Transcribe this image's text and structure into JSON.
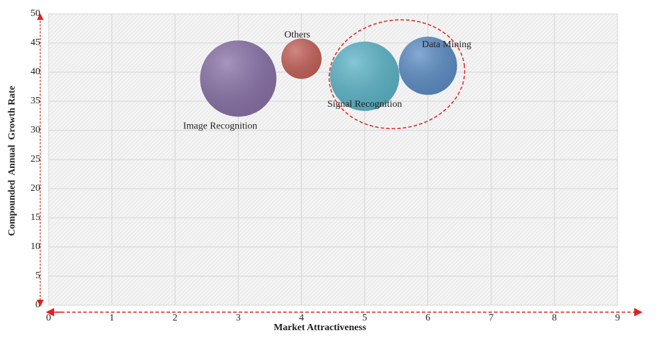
{
  "chart_data": {
    "type": "bubble",
    "x_label": "Market Attractiveness",
    "y_label": "Compounded  Annual  Growth Rate",
    "xlim": [
      0,
      9
    ],
    "xticks": [
      0,
      1,
      2,
      3,
      4,
      5,
      6,
      7,
      8,
      9
    ],
    "ylim": [
      0,
      50
    ],
    "yticks": [
      0,
      5,
      10,
      15,
      20,
      25,
      30,
      35,
      40,
      45,
      50
    ],
    "grid": true,
    "points": [
      {
        "name": "Image Recognition",
        "x": 3,
        "y": 38.9,
        "size": 55,
        "color": "#8a72a8"
      },
      {
        "name": "Others",
        "x": 4,
        "y": 42.3,
        "size": 29,
        "color": "#c4625a"
      },
      {
        "name": "Signal Recognition",
        "x": 5,
        "y": 39.3,
        "size": 50,
        "color": "#5db5c9"
      },
      {
        "name": "Data Mining",
        "x": 6,
        "y": 41.1,
        "size": 42,
        "color": "#5d8ec6"
      }
    ]
  }
}
